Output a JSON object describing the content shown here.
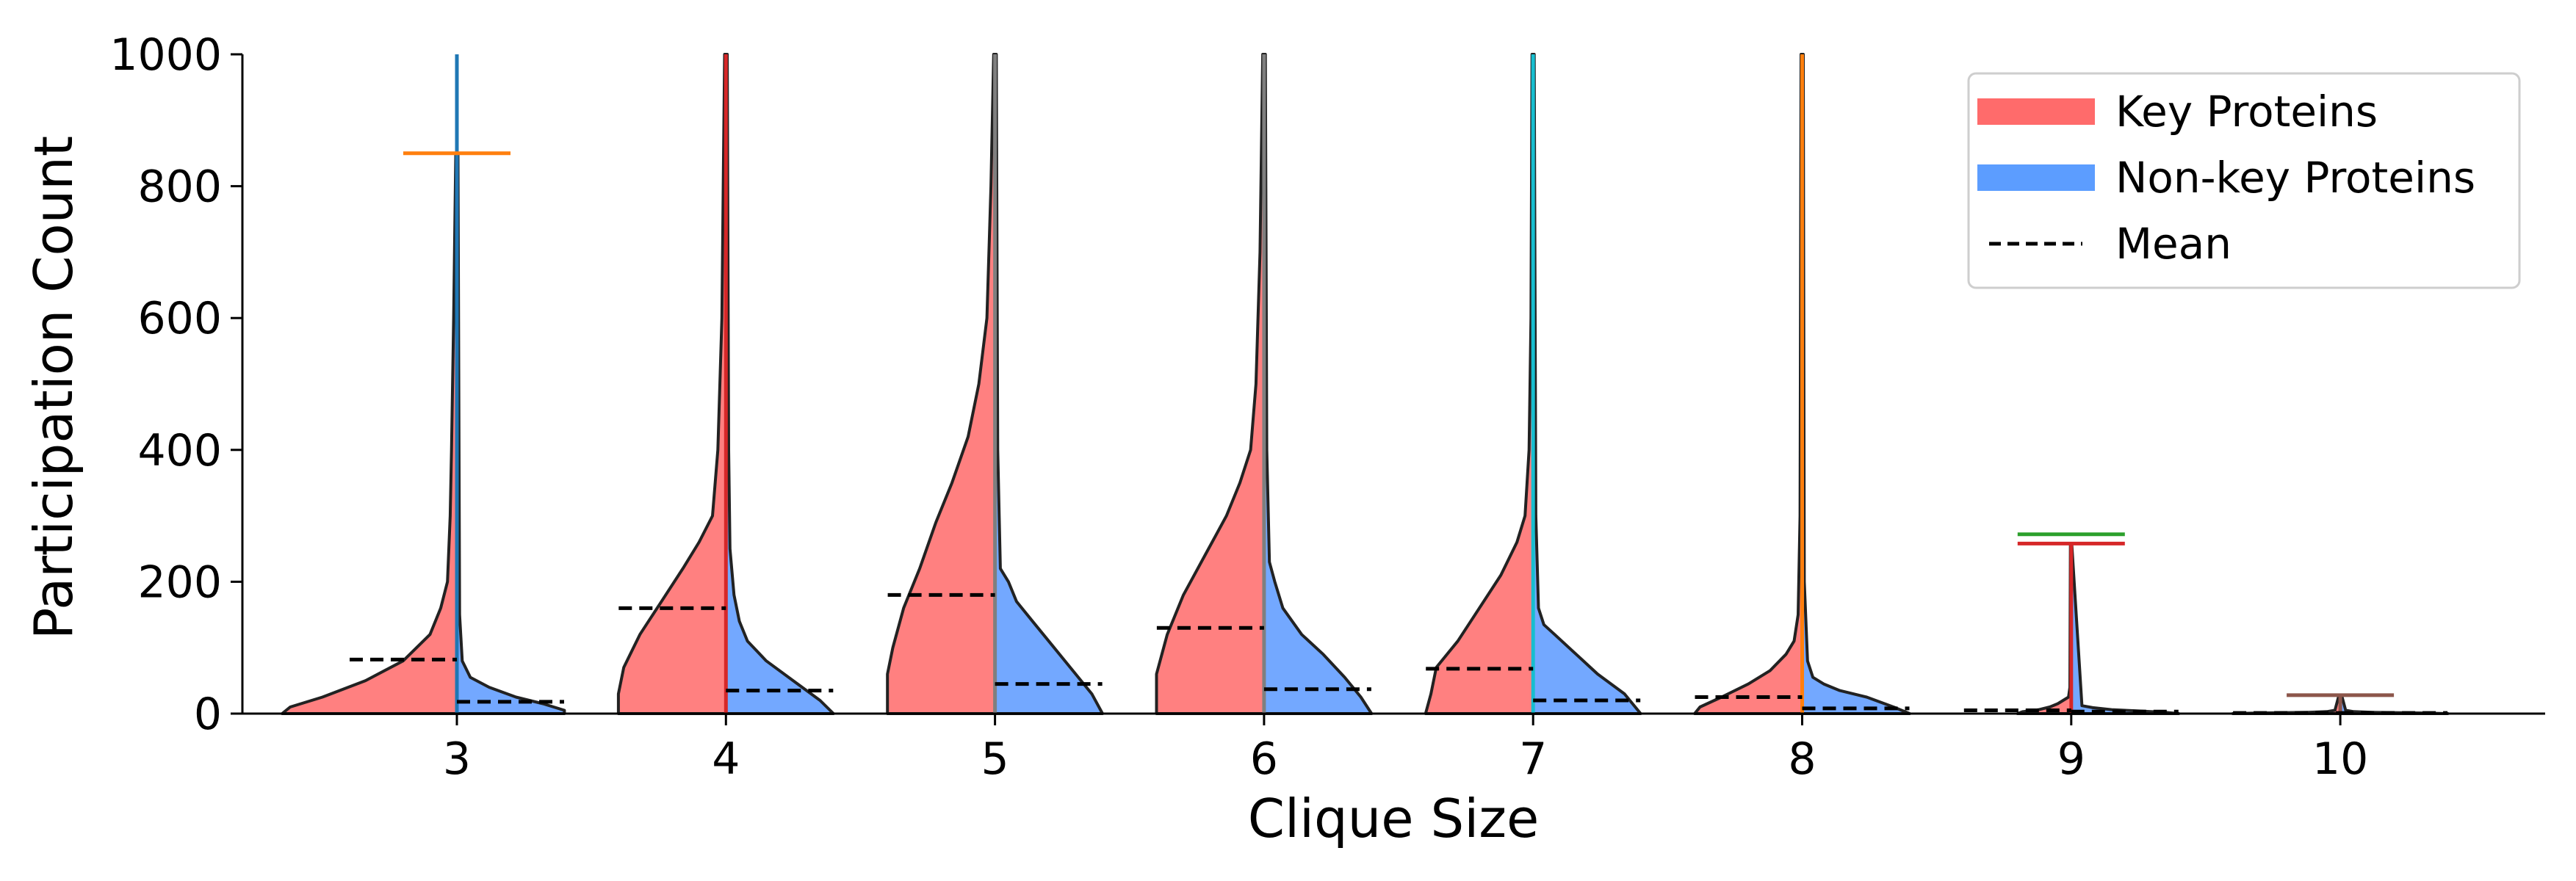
{
  "chart_data": {
    "type": "violin",
    "title": "",
    "xlabel": "Clique Size",
    "ylabel": "Participation Count",
    "ylim": [
      0,
      1000
    ],
    "yticks": [
      0,
      200,
      400,
      600,
      800,
      1000
    ],
    "grid": false,
    "legend_position": "top-right",
    "legend": [
      {
        "label": "Key Proteins",
        "kind": "patch",
        "color": "#ff6b6b"
      },
      {
        "label": "Non-key Proteins",
        "kind": "patch",
        "color": "#5c9dff"
      },
      {
        "label": "Mean",
        "kind": "dashed-line",
        "color": "#000000"
      }
    ],
    "colors": {
      "key_fill": "#ff8080",
      "nonkey_fill": "#73a8ff",
      "outline": "#222222",
      "mean_line": "#000000"
    },
    "categories": [
      "3",
      "4",
      "5",
      "6",
      "7",
      "8",
      "9",
      "10"
    ],
    "groups": [
      {
        "clique_size": 3,
        "key_mean": 82,
        "nonkey_mean": 18,
        "whisker_color": "#1f77b4",
        "cap_color": "#ff7f0e",
        "cap_value": 850,
        "top_value": 1000,
        "key_profile": [
          [
            0,
            0.65
          ],
          [
            10,
            0.62
          ],
          [
            25,
            0.5
          ],
          [
            50,
            0.34
          ],
          [
            80,
            0.2
          ],
          [
            120,
            0.1
          ],
          [
            160,
            0.06
          ],
          [
            200,
            0.035
          ],
          [
            300,
            0.025
          ],
          [
            400,
            0.02
          ],
          [
            600,
            0.012
          ],
          [
            850,
            0.004
          ]
        ],
        "nonkey_profile": [
          [
            0,
            0.4
          ],
          [
            5,
            0.4
          ],
          [
            15,
            0.32
          ],
          [
            25,
            0.22
          ],
          [
            40,
            0.12
          ],
          [
            55,
            0.05
          ],
          [
            80,
            0.02
          ],
          [
            150,
            0.01
          ],
          [
            850,
            0.004
          ]
        ]
      },
      {
        "clique_size": 4,
        "key_mean": 160,
        "nonkey_mean": 35,
        "whisker_color": "#d62728",
        "cap_color": "",
        "cap_value": null,
        "top_value": 1000,
        "key_profile": [
          [
            0,
            0.4
          ],
          [
            30,
            0.4
          ],
          [
            70,
            0.38
          ],
          [
            120,
            0.32
          ],
          [
            170,
            0.24
          ],
          [
            220,
            0.16
          ],
          [
            260,
            0.1
          ],
          [
            300,
            0.05
          ],
          [
            400,
            0.03
          ],
          [
            600,
            0.015
          ],
          [
            800,
            0.01
          ],
          [
            1000,
            0.005
          ]
        ],
        "nonkey_profile": [
          [
            0,
            0.4
          ],
          [
            20,
            0.35
          ],
          [
            50,
            0.25
          ],
          [
            80,
            0.15
          ],
          [
            110,
            0.08
          ],
          [
            140,
            0.05
          ],
          [
            180,
            0.03
          ],
          [
            250,
            0.015
          ],
          [
            400,
            0.01
          ],
          [
            1000,
            0.005
          ]
        ]
      },
      {
        "clique_size": 5,
        "key_mean": 180,
        "nonkey_mean": 45,
        "whisker_color": "#7f7f7f",
        "cap_color": "",
        "cap_value": null,
        "top_value": 1000,
        "key_profile": [
          [
            0,
            0.4
          ],
          [
            60,
            0.4
          ],
          [
            100,
            0.38
          ],
          [
            160,
            0.34
          ],
          [
            220,
            0.28
          ],
          [
            290,
            0.22
          ],
          [
            350,
            0.16
          ],
          [
            420,
            0.1
          ],
          [
            500,
            0.06
          ],
          [
            600,
            0.03
          ],
          [
            800,
            0.015
          ],
          [
            1000,
            0.005
          ]
        ],
        "nonkey_profile": [
          [
            0,
            0.4
          ],
          [
            30,
            0.36
          ],
          [
            60,
            0.3
          ],
          [
            100,
            0.22
          ],
          [
            140,
            0.14
          ],
          [
            170,
            0.08
          ],
          [
            200,
            0.05
          ],
          [
            220,
            0.02
          ],
          [
            400,
            0.01
          ],
          [
            1000,
            0.005
          ]
        ]
      },
      {
        "clique_size": 6,
        "key_mean": 130,
        "nonkey_mean": 37,
        "whisker_color": "#7f7f7f",
        "cap_color": "",
        "cap_value": null,
        "top_value": 1000,
        "key_profile": [
          [
            0,
            0.4
          ],
          [
            60,
            0.4
          ],
          [
            120,
            0.36
          ],
          [
            180,
            0.3
          ],
          [
            240,
            0.22
          ],
          [
            300,
            0.14
          ],
          [
            350,
            0.09
          ],
          [
            400,
            0.05
          ],
          [
            500,
            0.03
          ],
          [
            700,
            0.015
          ],
          [
            1000,
            0.005
          ]
        ],
        "nonkey_profile": [
          [
            0,
            0.4
          ],
          [
            25,
            0.36
          ],
          [
            55,
            0.3
          ],
          [
            90,
            0.22
          ],
          [
            120,
            0.14
          ],
          [
            160,
            0.07
          ],
          [
            200,
            0.04
          ],
          [
            230,
            0.02
          ],
          [
            400,
            0.01
          ],
          [
            1000,
            0.005
          ]
        ]
      },
      {
        "clique_size": 7,
        "key_mean": 68,
        "nonkey_mean": 20,
        "whisker_color": "#17becf",
        "cap_color": "",
        "cap_value": null,
        "top_value": 1000,
        "key_profile": [
          [
            0,
            0.4
          ],
          [
            30,
            0.38
          ],
          [
            70,
            0.36
          ],
          [
            110,
            0.28
          ],
          [
            160,
            0.2
          ],
          [
            210,
            0.12
          ],
          [
            260,
            0.06
          ],
          [
            300,
            0.03
          ],
          [
            400,
            0.015
          ],
          [
            600,
            0.008
          ],
          [
            1000,
            0.004
          ]
        ],
        "nonkey_profile": [
          [
            0,
            0.4
          ],
          [
            30,
            0.34
          ],
          [
            60,
            0.24
          ],
          [
            90,
            0.16
          ],
          [
            120,
            0.08
          ],
          [
            135,
            0.04
          ],
          [
            160,
            0.02
          ],
          [
            300,
            0.01
          ],
          [
            1000,
            0.004
          ]
        ]
      },
      {
        "clique_size": 8,
        "key_mean": 25,
        "nonkey_mean": 8,
        "whisker_color": "#ff7f0e",
        "cap_color": "",
        "cap_value": null,
        "top_value": 1000,
        "key_profile": [
          [
            0,
            0.4
          ],
          [
            10,
            0.38
          ],
          [
            25,
            0.3
          ],
          [
            45,
            0.2
          ],
          [
            65,
            0.12
          ],
          [
            90,
            0.06
          ],
          [
            110,
            0.03
          ],
          [
            150,
            0.015
          ],
          [
            300,
            0.008
          ],
          [
            1000,
            0.004
          ]
        ],
        "nonkey_profile": [
          [
            0,
            0.4
          ],
          [
            10,
            0.34
          ],
          [
            25,
            0.24
          ],
          [
            35,
            0.14
          ],
          [
            45,
            0.08
          ],
          [
            55,
            0.04
          ],
          [
            80,
            0.02
          ],
          [
            200,
            0.008
          ],
          [
            1000,
            0.004
          ]
        ]
      },
      {
        "clique_size": 9,
        "key_mean": 5,
        "nonkey_mean": 3,
        "whisker_color": "#d62728",
        "cap_color": "#2ca02c",
        "cap_value": 272,
        "top_value": 258,
        "key_profile": [
          [
            0,
            0.2
          ],
          [
            3,
            0.18
          ],
          [
            6,
            0.12
          ],
          [
            10,
            0.08
          ],
          [
            15,
            0.05
          ],
          [
            20,
            0.03
          ],
          [
            25,
            0.01
          ],
          [
            40,
            0.005
          ],
          [
            258,
            0.003
          ]
        ],
        "nonkey_profile": [
          [
            0,
            0.4
          ],
          [
            2,
            0.35
          ],
          [
            4,
            0.25
          ],
          [
            6,
            0.15
          ],
          [
            9,
            0.08
          ],
          [
            12,
            0.04
          ],
          [
            258,
            0.002
          ]
        ]
      },
      {
        "clique_size": 10,
        "key_mean": 1,
        "nonkey_mean": 1,
        "whisker_color": "#8c564b",
        "cap_color": "#8c564b",
        "cap_value": 28,
        "top_value": 28,
        "key_profile": [
          [
            0,
            0.4
          ],
          [
            1,
            0.3
          ],
          [
            2,
            0.12
          ],
          [
            3,
            0.05
          ],
          [
            5,
            0.02
          ],
          [
            28,
            0.005
          ]
        ],
        "nonkey_profile": [
          [
            0,
            0.4
          ],
          [
            1,
            0.3
          ],
          [
            2,
            0.12
          ],
          [
            3,
            0.05
          ],
          [
            5,
            0.02
          ],
          [
            28,
            0.005
          ]
        ]
      }
    ]
  }
}
